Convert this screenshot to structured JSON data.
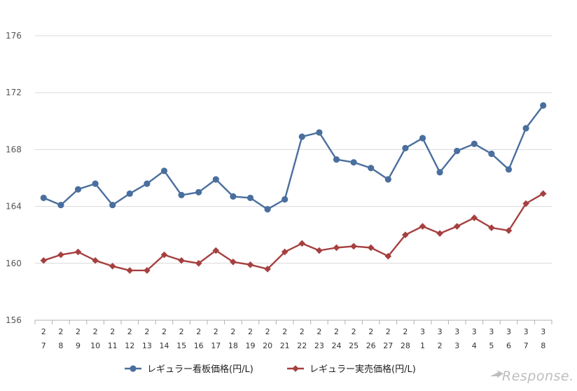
{
  "chart_data": {
    "type": "line",
    "title": "",
    "xlabel": "",
    "ylabel": "",
    "ylim": [
      156,
      176
    ],
    "yticks": [
      156,
      160,
      164,
      168,
      172,
      176
    ],
    "grid": true,
    "legend_position": "bottom",
    "categories": [
      [
        "2",
        "7"
      ],
      [
        "2",
        "8"
      ],
      [
        "2",
        "9"
      ],
      [
        "2",
        "10"
      ],
      [
        "2",
        "11"
      ],
      [
        "2",
        "12"
      ],
      [
        "2",
        "13"
      ],
      [
        "2",
        "14"
      ],
      [
        "2",
        "15"
      ],
      [
        "2",
        "16"
      ],
      [
        "2",
        "17"
      ],
      [
        "2",
        "18"
      ],
      [
        "2",
        "19"
      ],
      [
        "2",
        "20"
      ],
      [
        "2",
        "21"
      ],
      [
        "2",
        "22"
      ],
      [
        "2",
        "23"
      ],
      [
        "2",
        "24"
      ],
      [
        "2",
        "25"
      ],
      [
        "2",
        "26"
      ],
      [
        "2",
        "27"
      ],
      [
        "2",
        "28"
      ],
      [
        "3",
        "1"
      ],
      [
        "3",
        "2"
      ],
      [
        "3",
        "3"
      ],
      [
        "3",
        "4"
      ],
      [
        "3",
        "5"
      ],
      [
        "3",
        "6"
      ],
      [
        "3",
        "7"
      ],
      [
        "3",
        "8"
      ]
    ],
    "series": [
      {
        "name": "レギュラー看板価格(円/L)",
        "color": "#4a6f9e",
        "marker": "circle",
        "values": [
          164.6,
          164.1,
          165.2,
          165.6,
          164.1,
          164.9,
          165.6,
          166.5,
          164.8,
          165.0,
          165.9,
          164.7,
          164.6,
          163.8,
          164.5,
          168.9,
          169.2,
          167.3,
          167.1,
          166.7,
          165.9,
          168.1,
          168.8,
          166.4,
          167.9,
          168.4,
          167.7,
          166.6,
          169.5,
          171.1
        ]
      },
      {
        "name": "レギュラー実売価格(円/L)",
        "color": "#a64040",
        "marker": "diamond",
        "values": [
          160.2,
          160.6,
          160.8,
          160.2,
          159.8,
          159.5,
          159.5,
          160.6,
          160.2,
          160.0,
          160.9,
          160.1,
          159.9,
          159.6,
          160.8,
          161.4,
          160.9,
          161.1,
          161.2,
          161.1,
          160.5,
          162.0,
          162.6,
          162.1,
          162.6,
          163.2,
          162.5,
          162.3,
          164.2,
          164.9
        ]
      }
    ]
  },
  "watermark": "Response."
}
